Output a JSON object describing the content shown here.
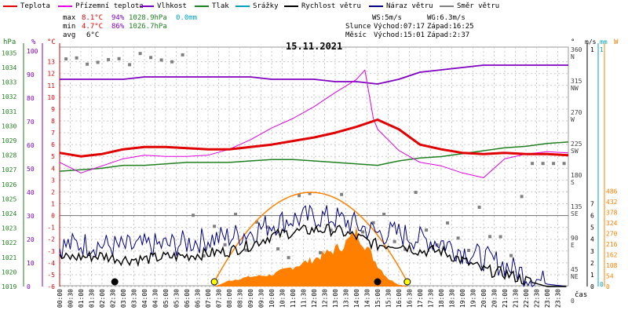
{
  "legend": [
    {
      "key": "teplota",
      "label": "Teplota",
      "color": "#e00000"
    },
    {
      "key": "prizemni",
      "label": "Přízemní teplota",
      "color": "#e000e0"
    },
    {
      "key": "vlhkost",
      "label": "Vlhkost",
      "color": "#8000c0"
    },
    {
      "key": "tlak",
      "label": "Tlak",
      "color": "#208020"
    },
    {
      "key": "srazky",
      "label": "Srážky",
      "color": "#00a0c0"
    },
    {
      "key": "rychlost",
      "label": "Rychlost větru",
      "color": "#000000"
    },
    {
      "key": "naraz",
      "label": "Náraz větru",
      "color": "#000080"
    },
    {
      "key": "smer",
      "label": "Směr větru",
      "color": "#808080"
    }
  ],
  "stats": {
    "max_label": "max",
    "max_temp": "8.1°C",
    "max_hum": "94%",
    "max_press": "1028.9hPa",
    "max_rain": "0.0mm",
    "min_label": "min",
    "min_temp": "4.7°C",
    "min_hum": "86%",
    "min_press": "1026.7hPa",
    "avg_label": "avg",
    "avg_temp": "6°C"
  },
  "wind_info": {
    "ws": "WS:5m/s",
    "wg": "WG:6.3m/s"
  },
  "sun": {
    "label": "Slunce",
    "rise": "Východ:07:17",
    "set": "Západ:16:25"
  },
  "moon": {
    "label": "Měsíc",
    "rise": "Východ:15:01",
    "set": "Západ:2:37"
  },
  "date": "15.11.2021",
  "colors": {
    "grid": "#c8c8c8",
    "temp": "#e00000",
    "ground": "#e000e0",
    "hum": "#8000c0",
    "press": "#208020",
    "rain": "#00a0c0",
    "wind": "#000000",
    "gust": "#000080",
    "dir": "#808080",
    "sun": "#ff8000",
    "sunmark": "#ffff00"
  },
  "chart_data": {
    "type": "line",
    "title": "15.11.2021",
    "xlabel": "čas",
    "x_ticks": [
      "00:00",
      "00:30",
      "01:00",
      "01:30",
      "02:00",
      "02:30",
      "03:00",
      "03:30",
      "04:00",
      "04:30",
      "05:00",
      "05:30",
      "06:00",
      "06:30",
      "07:00",
      "07:30",
      "08:00",
      "08:30",
      "09:00",
      "09:30",
      "10:00",
      "10:30",
      "11:00",
      "11:30",
      "12:00",
      "12:30",
      "13:00",
      "13:30",
      "14:00",
      "14:30",
      "15:00",
      "15:30",
      "16:00",
      "16:30",
      "17:00",
      "17:30",
      "18:00",
      "18:30",
      "19:00",
      "19:30",
      "20:00",
      "20:30",
      "21:00",
      "21:30",
      "22:00",
      "22:30",
      "23:00",
      "23:30"
    ],
    "axes": {
      "hpa": {
        "label": "hPa",
        "ticks": [
          "1035",
          "1034",
          "1033",
          "1032",
          "1031",
          "1030",
          "1029",
          "1028",
          "1027",
          "1026",
          "1025",
          "1024",
          "1023",
          "1022",
          "1021",
          "1020",
          "1019"
        ],
        "range": [
          1019,
          1035.5
        ]
      },
      "pct": {
        "label": "%",
        "ticks": [
          "100",
          "90",
          "80",
          "70",
          "60",
          "50",
          "40",
          "30",
          "20",
          "10",
          "0"
        ],
        "range": [
          0,
          100
        ]
      },
      "degc": {
        "label": "°C",
        "ticks": [
          "13",
          "12",
          "11",
          "10",
          "9",
          "8",
          "7",
          "6",
          "5",
          "4",
          "3",
          "2",
          "1",
          "0",
          "-1",
          "-2",
          "-3",
          "-4",
          "-5",
          "-6"
        ],
        "range": [
          -6,
          13.5
        ]
      },
      "dir": {
        "label": "°",
        "ticks": [
          "360",
          "315",
          "270",
          "225",
          "180",
          "135",
          "90",
          "45",
          "0"
        ],
        "names": [
          "N",
          "NW",
          "W",
          "SW",
          "S",
          "SE",
          "E",
          "NE",
          ""
        ]
      },
      "ms": {
        "label": "m/s",
        "ticks": [
          "1",
          "7",
          "6",
          "5",
          "4",
          "3",
          "2",
          "1",
          "0"
        ]
      },
      "mm": {
        "label": "mm",
        "ticks": [
          "1",
          "0"
        ]
      },
      "w": {
        "label": "W",
        "ticks": [
          "486",
          "432",
          "378",
          "324",
          "270",
          "216",
          "162",
          "108",
          "54",
          "0"
        ]
      }
    },
    "series": [
      {
        "name": "Teplota",
        "unit": "°C",
        "x": [
          0,
          1,
          2,
          3,
          4,
          5,
          6,
          7,
          8,
          9,
          10,
          11,
          12,
          13,
          14,
          15,
          16,
          17,
          18,
          19,
          20,
          21,
          22,
          23,
          24
        ],
        "values": [
          5.3,
          5.0,
          5.2,
          5.6,
          5.8,
          5.8,
          5.7,
          5.6,
          5.6,
          5.8,
          6.0,
          6.3,
          6.6,
          7.0,
          7.5,
          8.1,
          7.3,
          6.0,
          5.6,
          5.3,
          5.2,
          5.3,
          5.2,
          5.2,
          5.1
        ]
      },
      {
        "name": "Přízemní teplota",
        "unit": "°C",
        "x": [
          0,
          1,
          2,
          3,
          4,
          5,
          6,
          7,
          8,
          9,
          10,
          11,
          12,
          13,
          14,
          14.4,
          14.8,
          15,
          16,
          17,
          18,
          19,
          20,
          21,
          22,
          23,
          24
        ],
        "values": [
          4.5,
          3.6,
          4.2,
          4.8,
          5.1,
          5.0,
          5.0,
          5.1,
          5.6,
          6.4,
          7.4,
          8.2,
          9.2,
          10.4,
          11.5,
          12.3,
          8.2,
          7.3,
          5.5,
          4.5,
          4.2,
          3.6,
          3.2,
          4.8,
          5.2,
          5.4,
          5.3
        ]
      },
      {
        "name": "Vlhkost",
        "unit": "%",
        "x": [
          0,
          1,
          2,
          3,
          4,
          5,
          6,
          7,
          8,
          9,
          10,
          11,
          12,
          13,
          14,
          15,
          16,
          17,
          18,
          19,
          20,
          21,
          22,
          23,
          24
        ],
        "values": [
          88,
          88,
          88,
          88,
          89,
          89,
          89,
          89,
          89,
          89,
          88,
          88,
          88,
          87,
          87,
          86,
          88,
          91,
          92,
          93,
          94,
          94,
          94,
          94,
          94
        ]
      },
      {
        "name": "Tlak",
        "unit": "hPa",
        "x": [
          0,
          1,
          2,
          3,
          4,
          5,
          6,
          7,
          8,
          9,
          10,
          11,
          12,
          13,
          14,
          15,
          16,
          17,
          18,
          19,
          20,
          21,
          22,
          23,
          24
        ],
        "values": [
          1026.9,
          1027.0,
          1027.1,
          1027.3,
          1027.3,
          1027.4,
          1027.5,
          1027.5,
          1027.5,
          1027.6,
          1027.7,
          1027.7,
          1027.6,
          1027.5,
          1027.4,
          1027.3,
          1027.6,
          1027.8,
          1027.9,
          1028.1,
          1028.3,
          1028.5,
          1028.6,
          1028.8,
          1028.9
        ]
      },
      {
        "name": "Rychlost větru",
        "unit": "m/s",
        "x": [
          0,
          1,
          2,
          3,
          4,
          5,
          6,
          7,
          8,
          9,
          10,
          11,
          12,
          13,
          14,
          15,
          16,
          17,
          18,
          19,
          20,
          21,
          22,
          23,
          24
        ],
        "values": [
          2.4,
          2.5,
          2.6,
          2.3,
          2.3,
          2.5,
          2.6,
          2.8,
          3.0,
          3.5,
          4.3,
          4.6,
          4.8,
          4.8,
          4.2,
          3.5,
          3.6,
          3.0,
          3.0,
          2.2,
          1.4,
          1.1,
          0.5,
          0.0,
          0.0
        ]
      },
      {
        "name": "Náraz větru",
        "unit": "m/s",
        "x": [
          0,
          1,
          2,
          3,
          4,
          5,
          6,
          7,
          8,
          9,
          10,
          11,
          12,
          13,
          14,
          15,
          16,
          17,
          18,
          19,
          20,
          21,
          22,
          23,
          24
        ],
        "values": [
          3.4,
          3.6,
          3.5,
          3.3,
          3.4,
          3.5,
          3.7,
          4.0,
          4.2,
          4.6,
          5.3,
          5.7,
          5.9,
          5.8,
          5.2,
          4.5,
          4.5,
          4.0,
          3.8,
          3.0,
          2.4,
          1.8,
          1.0,
          0.2,
          0.0
        ]
      },
      {
        "name": "Sluneční záření",
        "unit": "W",
        "x": [
          7.3,
          8,
          9,
          10,
          11,
          12,
          13,
          13.5,
          14,
          14.5,
          15,
          15.5,
          16,
          16.5
        ],
        "values": [
          0,
          30,
          50,
          60,
          100,
          140,
          190,
          220,
          280,
          200,
          110,
          40,
          10,
          0
        ]
      }
    ]
  }
}
